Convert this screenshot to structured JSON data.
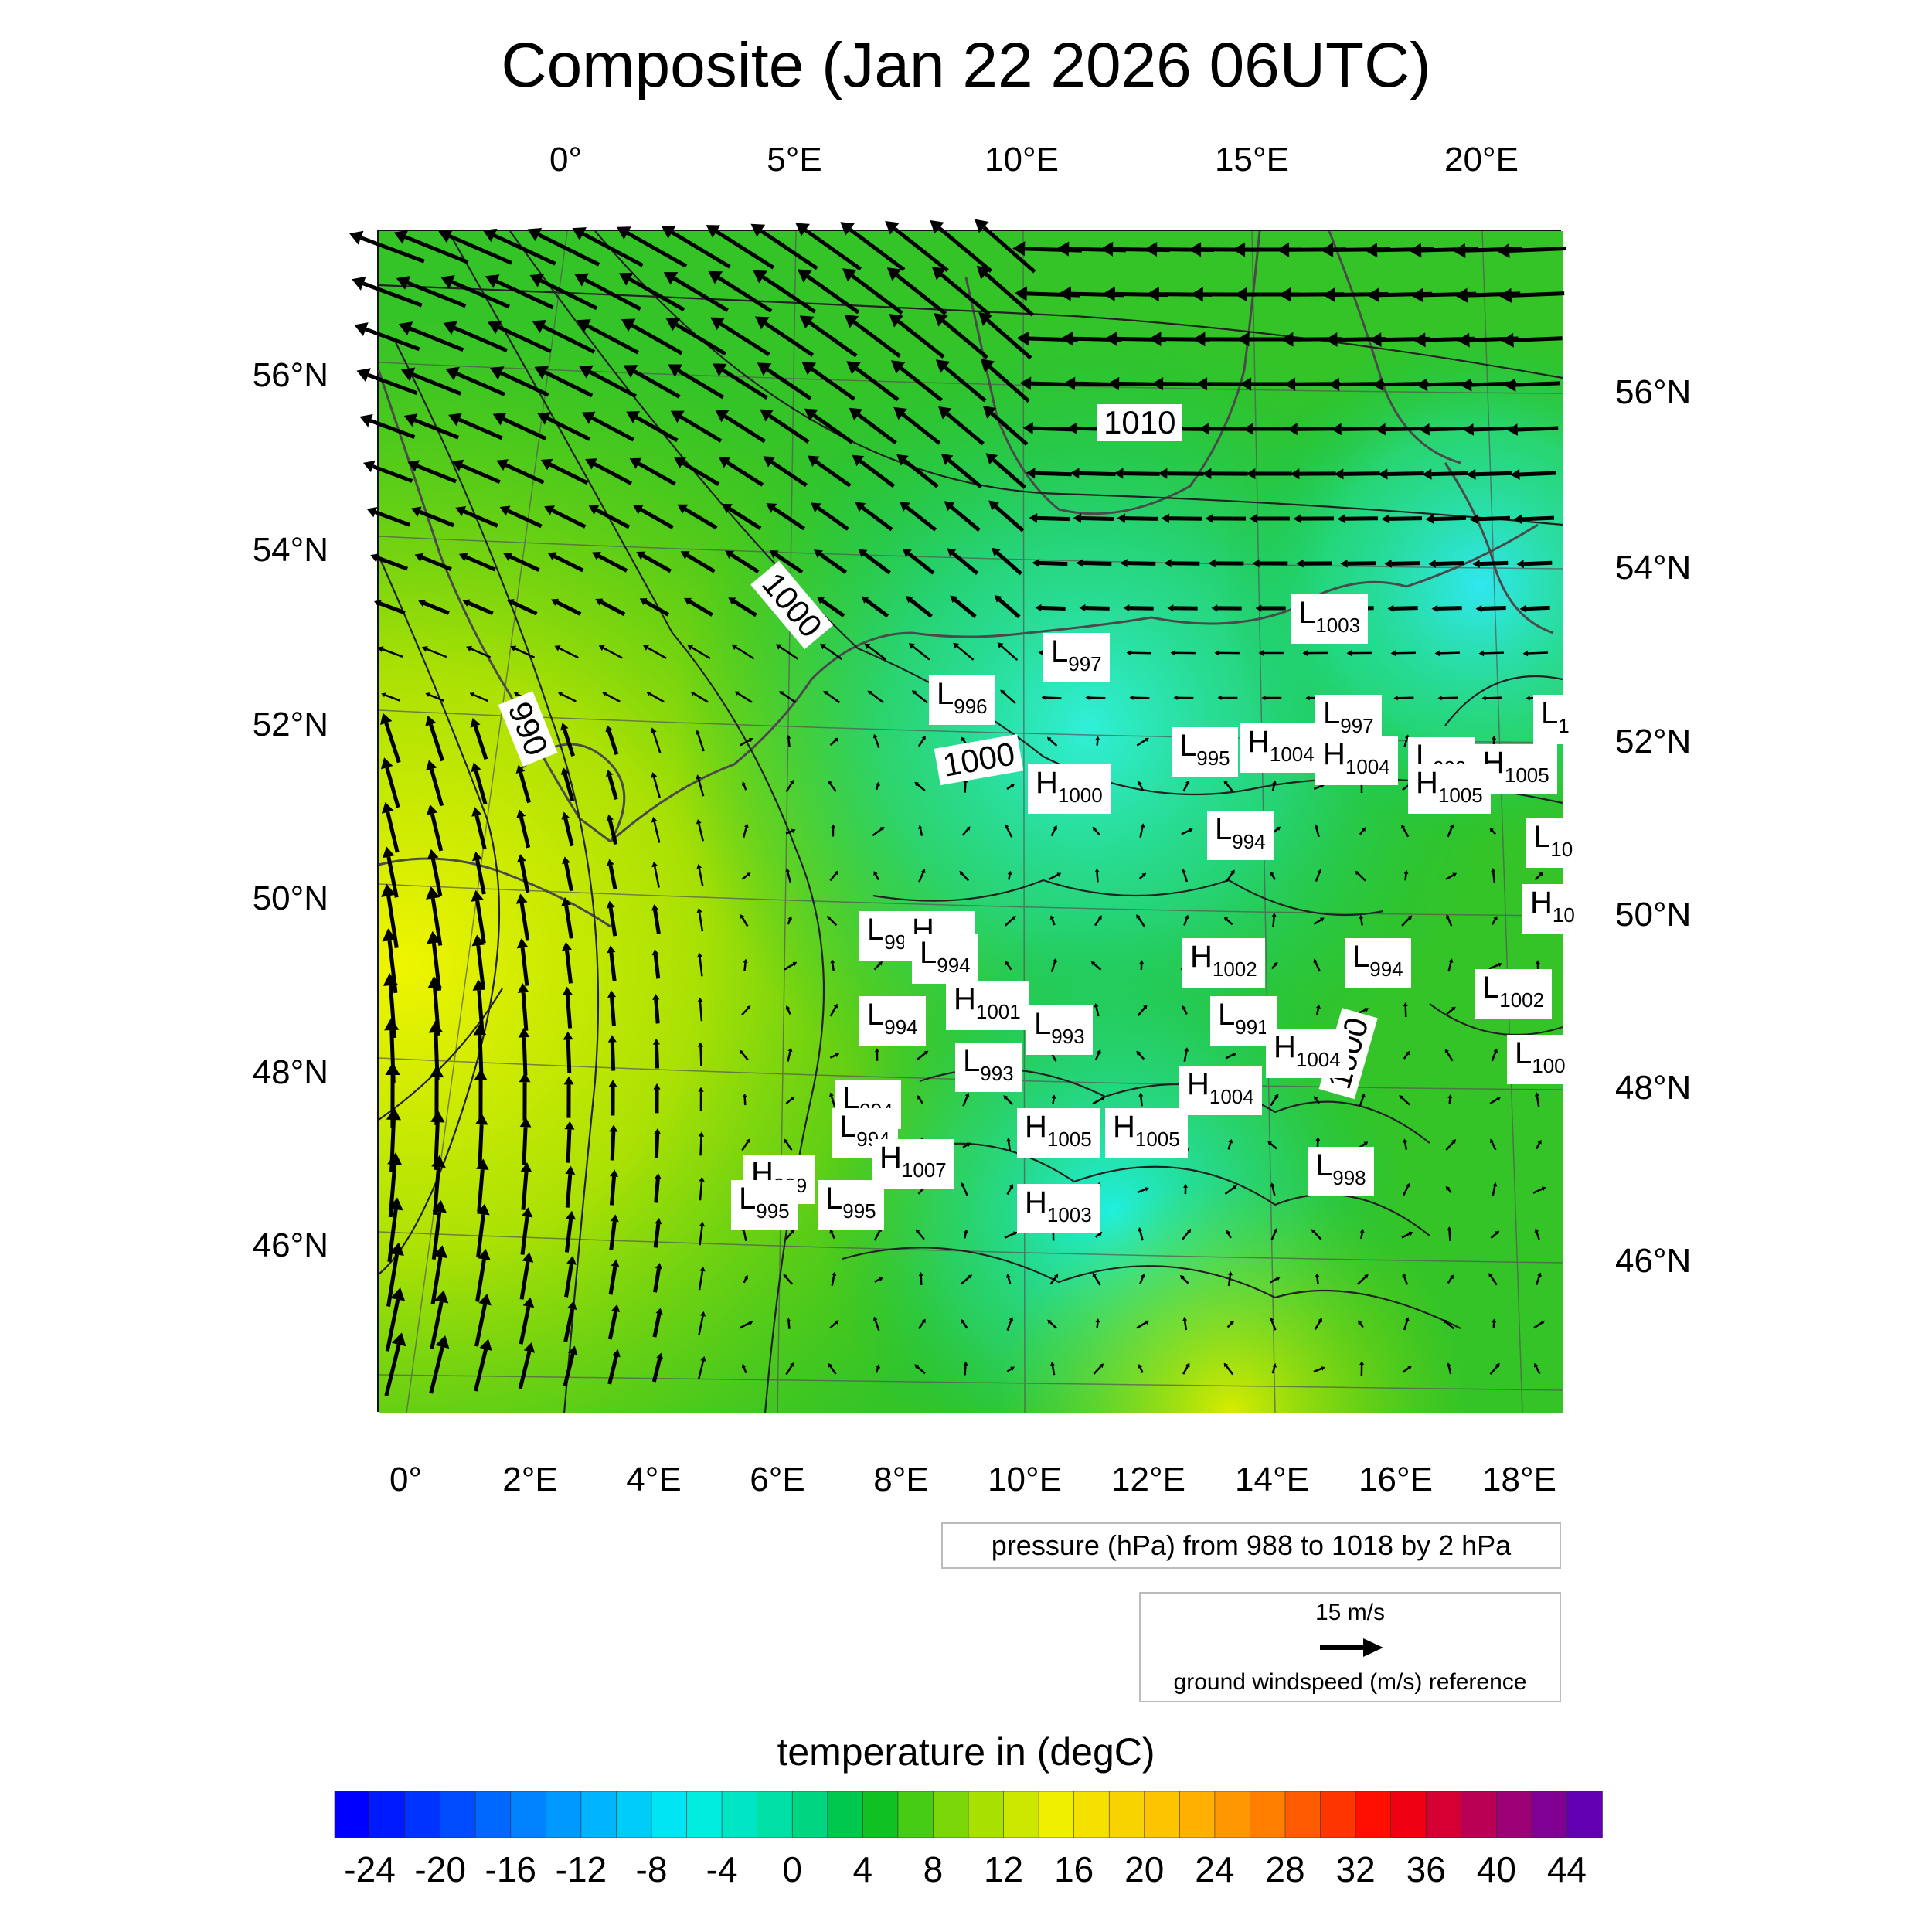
{
  "title": "Composite (Jan 22 2026 06UTC)",
  "top_lon_ticks": [
    "0°",
    "5°E",
    "10°E",
    "15°E",
    "20°E"
  ],
  "bottom_lon_ticks": [
    "0°",
    "2°E",
    "4°E",
    "6°E",
    "8°E",
    "10°E",
    "12°E",
    "14°E",
    "16°E",
    "18°E"
  ],
  "left_lat_ticks": [
    "56°N",
    "54°N",
    "52°N",
    "50°N",
    "48°N",
    "46°N"
  ],
  "right_lat_ticks": [
    "56°N",
    "54°N",
    "52°N",
    "50°N",
    "48°N",
    "46°N"
  ],
  "contour_labels": [
    "1010",
    "1000",
    "990",
    "1000",
    "1000"
  ],
  "pressure_centers": [
    {
      "type": "L",
      "value": "1003"
    },
    {
      "type": "L",
      "value": "997"
    },
    {
      "type": "L",
      "value": "996"
    },
    {
      "type": "L",
      "value": "997"
    },
    {
      "type": "L",
      "value": "1"
    },
    {
      "type": "L",
      "value": "995"
    },
    {
      "type": "H",
      "value": "1004"
    },
    {
      "type": "H",
      "value": "1004"
    },
    {
      "type": "L",
      "value": "999"
    },
    {
      "type": "H",
      "value": "1005"
    },
    {
      "type": "H",
      "value": "1005"
    },
    {
      "type": "H",
      "value": "1000"
    },
    {
      "type": "L",
      "value": "10"
    },
    {
      "type": "L",
      "value": "994"
    },
    {
      "type": "H",
      "value": "10"
    },
    {
      "type": "L",
      "value": "99"
    },
    {
      "type": "H",
      "value": "999"
    },
    {
      "type": "L",
      "value": "994"
    },
    {
      "type": "H",
      "value": "1002"
    },
    {
      "type": "L",
      "value": "994"
    },
    {
      "type": "L",
      "value": "1002"
    },
    {
      "type": "L",
      "value": "994"
    },
    {
      "type": "H",
      "value": "1001"
    },
    {
      "type": "L",
      "value": "991"
    },
    {
      "type": "L",
      "value": "993"
    },
    {
      "type": "H",
      "value": "1004"
    },
    {
      "type": "L",
      "value": "993"
    },
    {
      "type": "L",
      "value": "100"
    },
    {
      "type": "H",
      "value": "1004"
    },
    {
      "type": "L",
      "value": "994"
    },
    {
      "type": "L",
      "value": "994"
    },
    {
      "type": "H",
      "value": "1005"
    },
    {
      "type": "H",
      "value": "1005"
    },
    {
      "type": "H",
      "value": "1007"
    },
    {
      "type": "L",
      "value": "998"
    },
    {
      "type": "H",
      "value": "999"
    },
    {
      "type": "L",
      "value": "995"
    },
    {
      "type": "L",
      "value": "995"
    },
    {
      "type": "H",
      "value": "1003"
    }
  ],
  "pressure_note": "pressure (hPa) from 988 to 1018 by 2 hPa",
  "wind_reference": {
    "speed": "15 m/s",
    "label": "ground windspeed (m/s) reference"
  },
  "colorbar": {
    "title": "temperature in (degC)",
    "labels": [
      "-24",
      "-20",
      "-16",
      "-12",
      "-8",
      "-4",
      "0",
      "4",
      "8",
      "12",
      "16",
      "20",
      "24",
      "28",
      "32",
      "36",
      "40",
      "44"
    ],
    "min": -26,
    "max": 46,
    "step": 2
  },
  "colors": {
    "cold": "#00e0e0",
    "mid": "#10b820",
    "warm": "#e8f000"
  }
}
